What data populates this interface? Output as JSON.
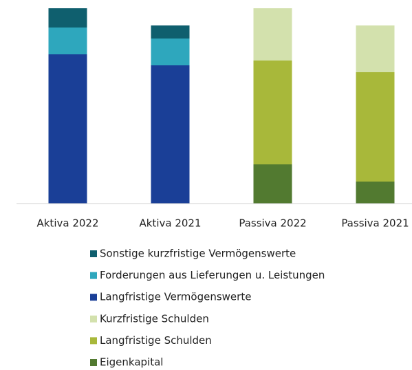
{
  "chart_data": {
    "type": "stacked_bar",
    "categories": [
      "Aktiva 2022",
      "Aktiva 2021",
      "Passiva 2022",
      "Passiva 2021"
    ],
    "series": [
      {
        "name": "Sonstige kurzfristige Vermögenswerte",
        "color": "#0f5f6e",
        "values": [
          28,
          19,
          null,
          null
        ]
      },
      {
        "name": "Forderungen aus Lieferungen u. Leistungen",
        "color": "#2ea7bd",
        "values": [
          39,
          39,
          null,
          null
        ]
      },
      {
        "name": "Langfristige Vermögenswerte",
        "color": "#1a3f97",
        "values": [
          217,
          201,
          null,
          null
        ]
      },
      {
        "name": "Kurzfristige Schulden",
        "color": "#d3e1ad",
        "values": [
          null,
          null,
          76,
          68
        ]
      },
      {
        "name": "Langfristige Schulden",
        "color": "#a8b83a",
        "values": [
          null,
          null,
          151,
          159
        ]
      },
      {
        "name": "Eigenkapital",
        "color": "#527a30",
        "values": [
          null,
          null,
          57,
          32
        ]
      }
    ],
    "ylim": [
      0,
      284
    ]
  }
}
